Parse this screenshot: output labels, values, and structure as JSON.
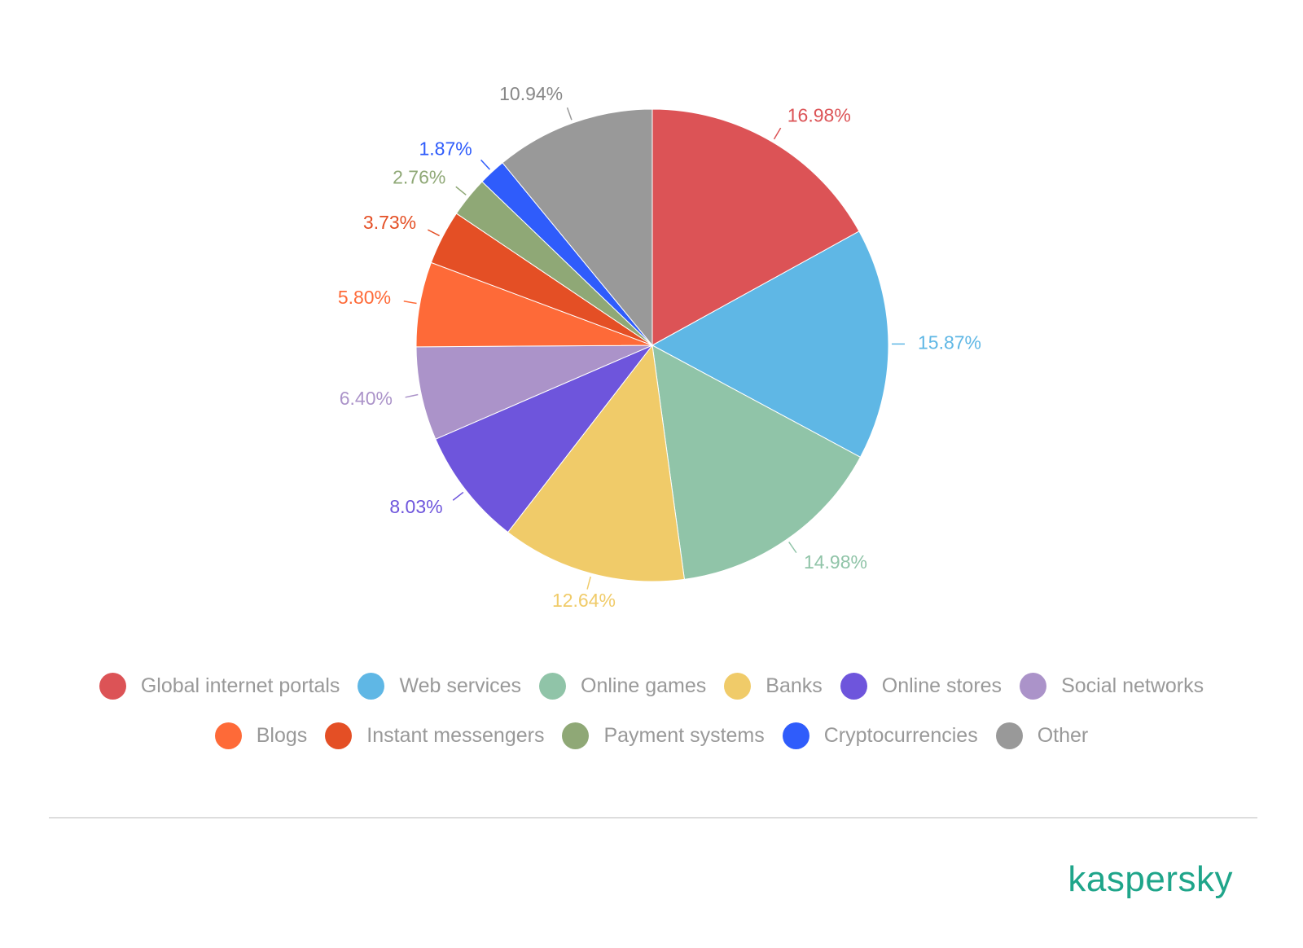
{
  "chart_data": {
    "type": "pie",
    "categories": [
      "Global internet portals",
      "Web services",
      "Online games",
      "Banks",
      "Online stores",
      "Social networks",
      "Blogs",
      "Instant messengers",
      "Payment systems",
      "Cryptocurrencies",
      "Other"
    ],
    "values": [
      16.98,
      15.87,
      14.98,
      12.64,
      8.03,
      6.4,
      5.8,
      3.73,
      2.76,
      1.87,
      10.94
    ],
    "value_labels": [
      "16.98%",
      "15.87%",
      "14.98%",
      "12.64%",
      "8.03%",
      "6.40%",
      "5.80%",
      "3.73%",
      "2.76%",
      "1.87%",
      "10.94%"
    ],
    "colors": [
      "#dc5356",
      "#5fb7e5",
      "#90c4a8",
      "#f0cb69",
      "#6e55dc",
      "#ab93c9",
      "#fe6a38",
      "#e44f25",
      "#8fa876",
      "#2f5cfb",
      "#999999"
    ],
    "legend": "bottom"
  },
  "brand": "kaspersky"
}
